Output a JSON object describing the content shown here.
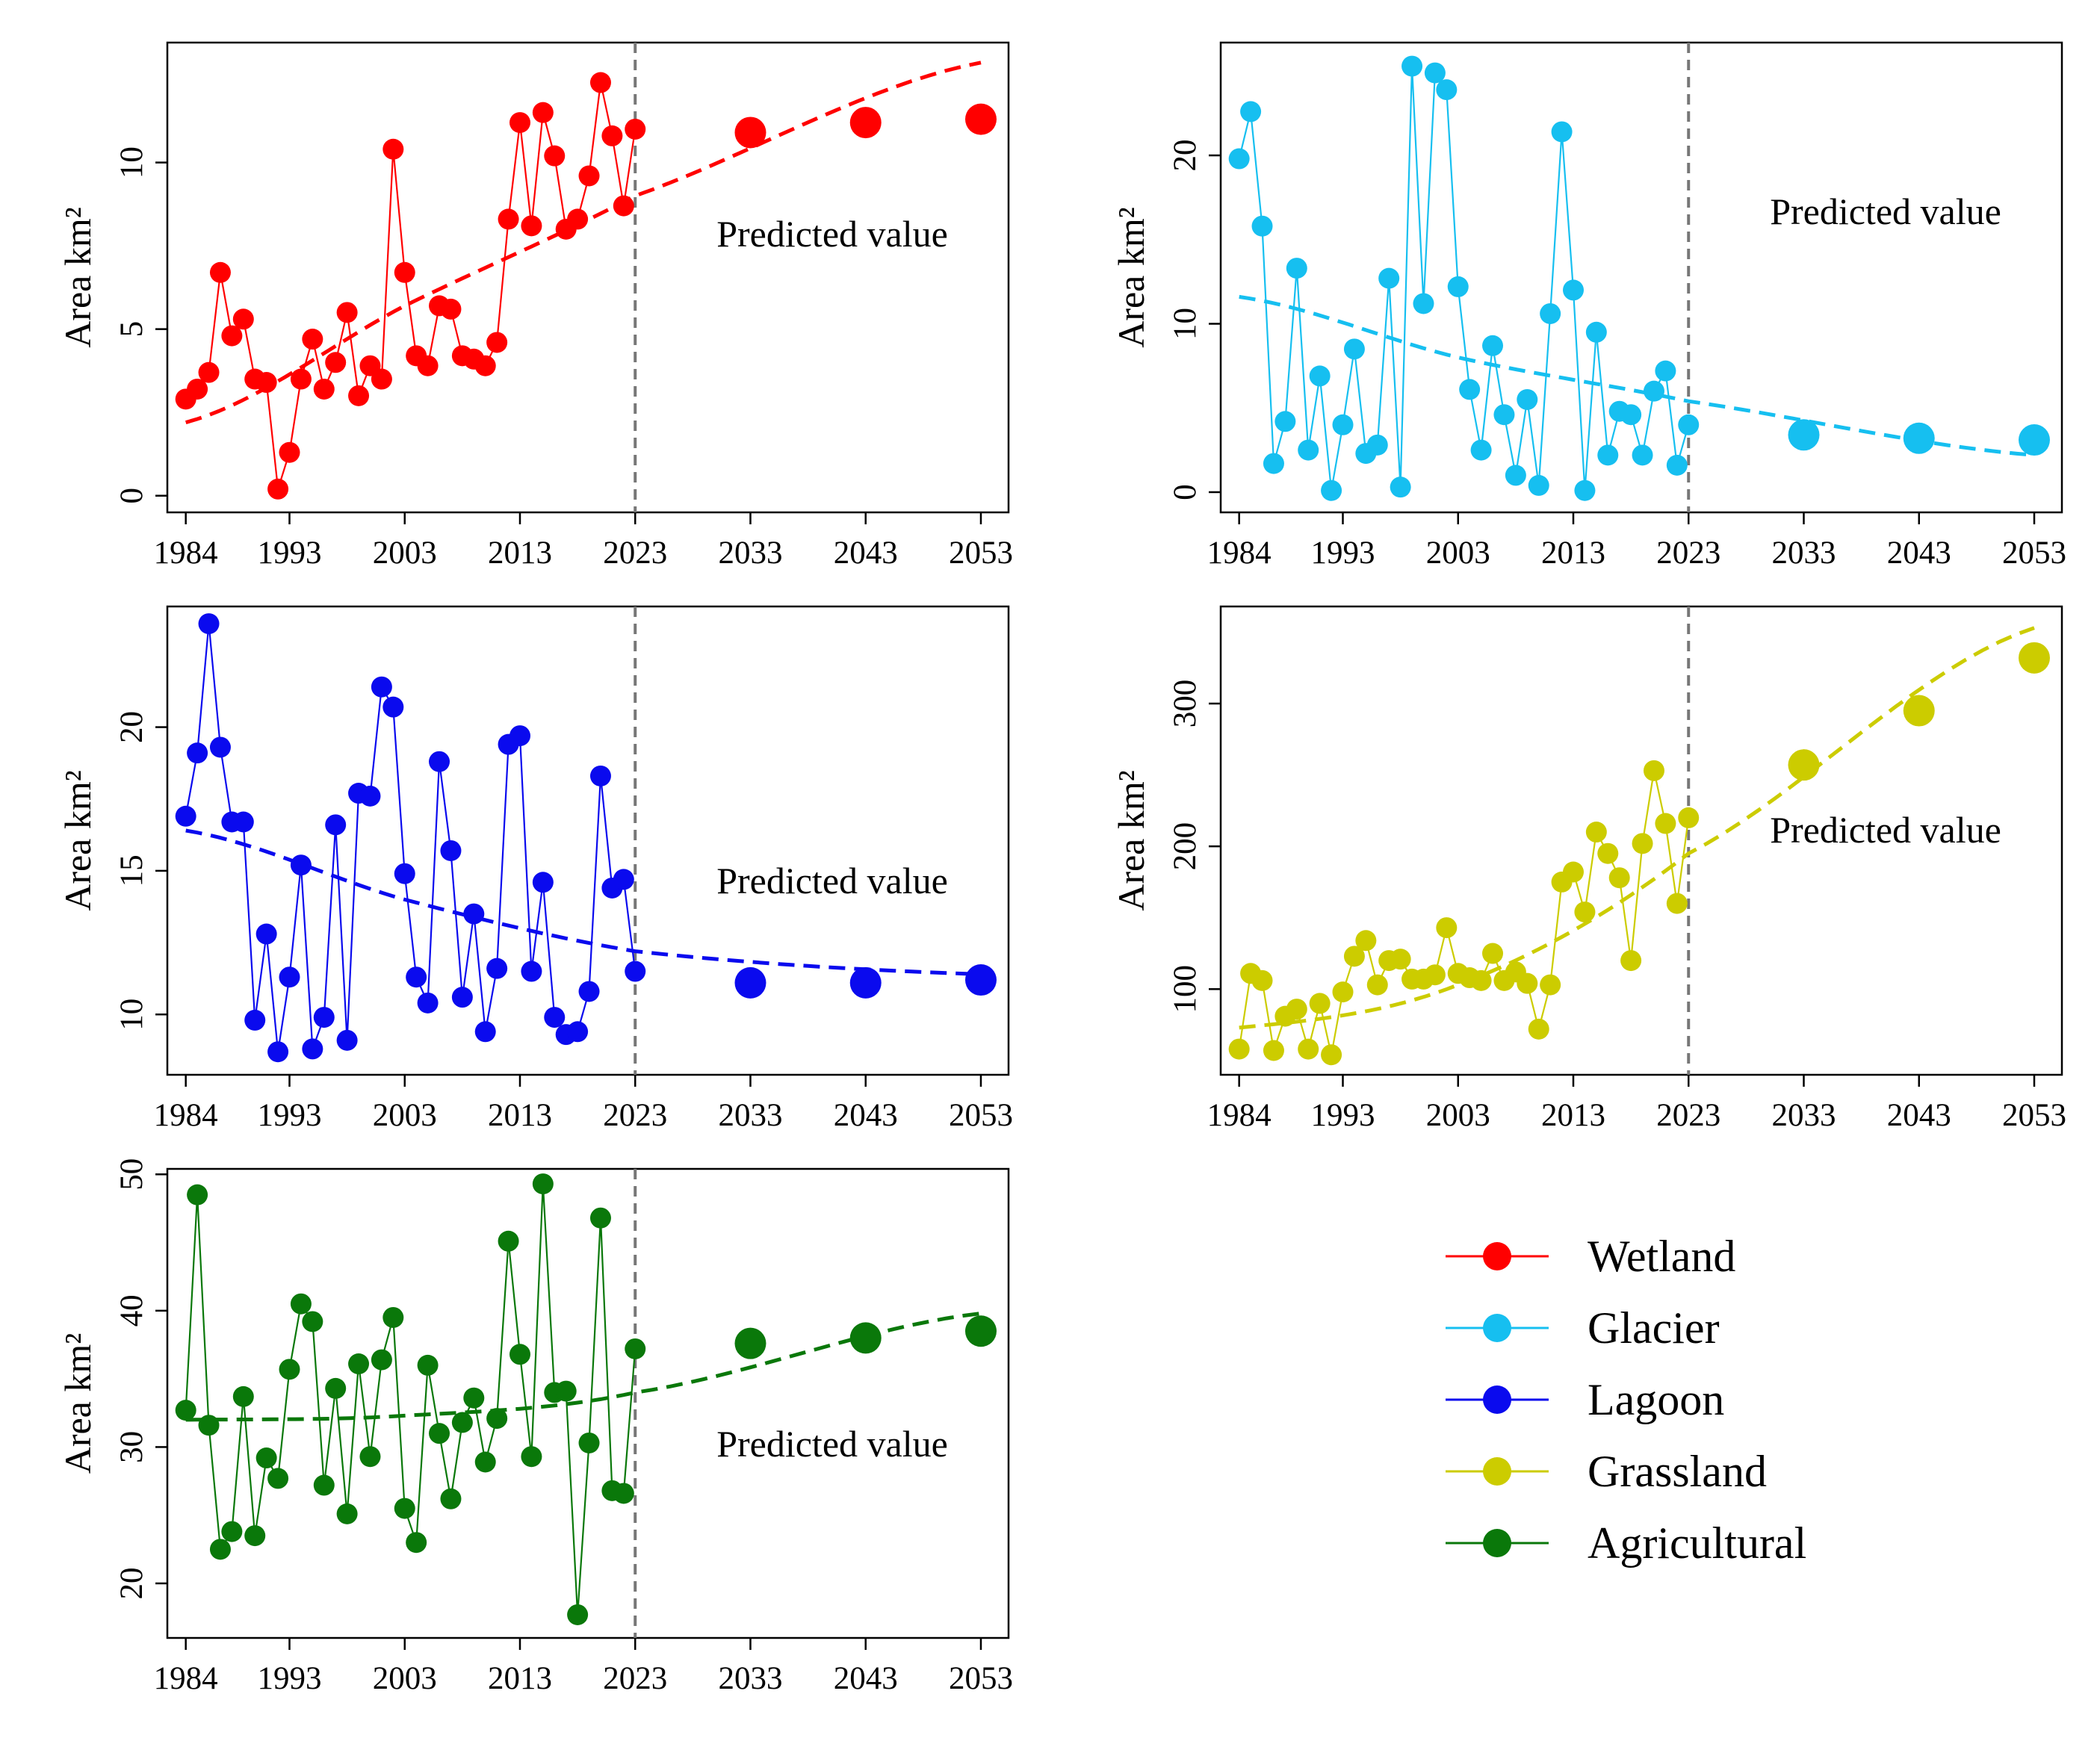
{
  "chart_data": [
    {
      "type": "line",
      "title": "Wetland",
      "color": "#ff0000",
      "ylabel": "Area km²",
      "annotation": "Predicted value",
      "divider_year": 2023,
      "ylim": [
        -0.5,
        13.6
      ],
      "yticks": [
        0,
        5,
        10
      ],
      "xlim": [
        1982.4,
        2055.4
      ],
      "xticks": [
        1984,
        1993,
        2003,
        2013,
        2023,
        2033,
        2043,
        2053
      ],
      "observed": {
        "x": [
          1984,
          1985,
          1986,
          1987,
          1988,
          1989,
          1990,
          1991,
          1992,
          1993,
          1994,
          1995,
          1996,
          1997,
          1998,
          1999,
          2000,
          2001,
          2002,
          2003,
          2004,
          2005,
          2006,
          2007,
          2008,
          2009,
          2010,
          2011,
          2012,
          2013,
          2014,
          2015,
          2016,
          2017,
          2018,
          2019,
          2020,
          2021,
          2022,
          2023
        ],
        "y": [
          2.9,
          3.2,
          3.7,
          6.7,
          4.8,
          5.3,
          3.5,
          3.4,
          0.2,
          1.3,
          3.5,
          4.7,
          3.2,
          4.0,
          5.5,
          3.0,
          3.9,
          3.5,
          10.4,
          6.7,
          4.2,
          3.9,
          5.7,
          5.6,
          4.2,
          4.1,
          3.9,
          4.6,
          8.3,
          11.2,
          8.1,
          11.5,
          10.2,
          8.0,
          8.3,
          9.6,
          12.4,
          10.8,
          8.7,
          11.0
        ]
      },
      "predicted": {
        "x": [
          2033,
          2043,
          2053
        ],
        "y": [
          10.9,
          11.2,
          11.3
        ]
      },
      "trend": {
        "x": [
          1984,
          2003,
          2023,
          2053
        ],
        "y": [
          2.2,
          5.7,
          9.0,
          13.0
        ]
      }
    },
    {
      "type": "line",
      "title": "Glacier",
      "color": "#16bff0",
      "ylabel": "Area km²",
      "annotation": "Predicted value",
      "divider_year": 2023,
      "ylim": [
        -1.2,
        26.7
      ],
      "yticks": [
        0,
        10,
        20
      ],
      "xlim": [
        1982.4,
        2055.4
      ],
      "xticks": [
        1984,
        1993,
        2003,
        2013,
        2023,
        2033,
        2043,
        2053
      ],
      "observed": {
        "x": [
          1984,
          1985,
          1986,
          1987,
          1988,
          1989,
          1990,
          1991,
          1992,
          1993,
          1994,
          1995,
          1996,
          1997,
          1998,
          1999,
          2000,
          2001,
          2002,
          2003,
          2004,
          2005,
          2006,
          2007,
          2008,
          2009,
          2010,
          2011,
          2012,
          2013,
          2014,
          2015,
          2016,
          2017,
          2018,
          2019,
          2020,
          2021,
          2022,
          2023
        ],
        "y": [
          19.8,
          22.6,
          15.8,
          1.7,
          4.2,
          13.3,
          2.5,
          6.9,
          0.1,
          4.0,
          8.5,
          2.3,
          2.8,
          12.7,
          0.3,
          25.3,
          11.2,
          24.9,
          23.9,
          12.2,
          6.1,
          2.5,
          8.7,
          4.6,
          1.0,
          5.5,
          0.4,
          10.6,
          21.4,
          12.0,
          0.1,
          9.5,
          2.2,
          4.8,
          4.6,
          2.2,
          6.0,
          7.2,
          1.6,
          4.0
        ]
      },
      "predicted": {
        "x": [
          2033,
          2043,
          2053
        ],
        "y": [
          3.4,
          3.2,
          3.1
        ]
      },
      "trend": {
        "x": [
          1984,
          2003,
          2023,
          2053
        ],
        "y": [
          11.6,
          8.0,
          5.4,
          2.2
        ]
      }
    },
    {
      "type": "line",
      "title": "Lagoon",
      "color": "#0a0aee",
      "ylabel": "Area km²",
      "annotation": "Predicted value",
      "divider_year": 2023,
      "ylim": [
        7.9,
        24.2
      ],
      "yticks": [
        10,
        15,
        20
      ],
      "xlim": [
        1982.4,
        2055.4
      ],
      "xticks": [
        1984,
        1993,
        2003,
        2013,
        2023,
        2033,
        2043,
        2053
      ],
      "observed": {
        "x": [
          1984,
          1985,
          1986,
          1987,
          1988,
          1989,
          1990,
          1991,
          1992,
          1993,
          1994,
          1995,
          1996,
          1997,
          1998,
          1999,
          2000,
          2001,
          2002,
          2003,
          2004,
          2005,
          2006,
          2007,
          2008,
          2009,
          2010,
          2011,
          2012,
          2013,
          2014,
          2015,
          2016,
          2017,
          2018,
          2019,
          2020,
          2021,
          2022,
          2023
        ],
        "y": [
          16.9,
          19.1,
          23.6,
          19.3,
          16.7,
          16.7,
          9.8,
          12.8,
          8.7,
          11.3,
          15.2,
          8.8,
          9.9,
          16.6,
          9.1,
          17.7,
          17.6,
          21.4,
          20.7,
          14.9,
          11.3,
          10.4,
          18.8,
          15.7,
          10.6,
          13.5,
          9.4,
          11.6,
          19.4,
          19.7,
          11.5,
          14.6,
          9.9,
          9.3,
          9.4,
          10.8,
          18.3,
          14.4,
          14.7,
          11.5
        ]
      },
      "predicted": {
        "x": [
          2033,
          2043,
          2053
        ],
        "y": [
          11.1,
          11.1,
          11.2
        ]
      },
      "trend": {
        "x": [
          1984,
          2003,
          2023,
          2053
        ],
        "y": [
          16.4,
          14.0,
          12.2,
          11.4
        ]
      }
    },
    {
      "type": "line",
      "title": "Grassland",
      "color": "#cccc00",
      "ylabel": "Area km²",
      "annotation": "Predicted value",
      "divider_year": 2023,
      "ylim": [
        40,
        368
      ],
      "yticks": [
        100,
        200,
        300
      ],
      "xlim": [
        1982.4,
        2055.4
      ],
      "xticks": [
        1984,
        1993,
        2003,
        2013,
        2023,
        2033,
        2043,
        2053
      ],
      "observed": {
        "x": [
          1984,
          1985,
          1986,
          1987,
          1988,
          1989,
          1990,
          1991,
          1992,
          1993,
          1994,
          1995,
          1996,
          1997,
          1998,
          1999,
          2000,
          2001,
          2002,
          2003,
          2004,
          2005,
          2006,
          2007,
          2008,
          2009,
          2010,
          2011,
          2012,
          2013,
          2014,
          2015,
          2016,
          2017,
          2018,
          2019,
          2020,
          2021,
          2022,
          2023
        ],
        "y": [
          58,
          111,
          106,
          57,
          81,
          86,
          58,
          90,
          54,
          98,
          123,
          134,
          103,
          120,
          121,
          107,
          107,
          110,
          143,
          111,
          108,
          106,
          125,
          106,
          112,
          104,
          72,
          103,
          175,
          182,
          154,
          210,
          195,
          178,
          120,
          202,
          253,
          216,
          160,
          220
        ]
      },
      "predicted": {
        "x": [
          2033,
          2043,
          2053
        ],
        "y": [
          257,
          295,
          332
        ]
      },
      "trend": {
        "x": [
          1984,
          2003,
          2023,
          2053
        ],
        "y": [
          73,
          103,
          195,
          353
        ]
      }
    },
    {
      "type": "line",
      "title": "Agricultural",
      "color": "#0a780a",
      "ylabel": "Area km²",
      "annotation": "Predicted value",
      "divider_year": 2023,
      "ylim": [
        16.0,
        50.4
      ],
      "yticks": [
        20,
        30,
        40,
        50
      ],
      "xlim": [
        1982.4,
        2055.4
      ],
      "xticks": [
        1984,
        1993,
        2003,
        2013,
        2023,
        2033,
        2043,
        2053
      ],
      "observed": {
        "x": [
          1984,
          1985,
          1986,
          1987,
          1988,
          1989,
          1990,
          1991,
          1992,
          1993,
          1994,
          1995,
          1996,
          1997,
          1998,
          1999,
          2000,
          2001,
          2002,
          2003,
          2004,
          2005,
          2006,
          2007,
          2008,
          2009,
          2010,
          2011,
          2012,
          2013,
          2014,
          2015,
          2016,
          2017,
          2018,
          2019,
          2020,
          2021,
          2022,
          2023
        ],
        "y": [
          32.7,
          48.5,
          31.6,
          22.5,
          23.8,
          33.7,
          23.5,
          29.2,
          27.7,
          35.7,
          40.5,
          39.2,
          27.2,
          34.3,
          25.1,
          36.1,
          29.3,
          36.4,
          39.5,
          25.5,
          23.0,
          36.0,
          31.0,
          26.2,
          31.8,
          33.6,
          28.9,
          32.1,
          45.1,
          36.8,
          29.3,
          49.3,
          34.0,
          34.1,
          17.7,
          30.3,
          46.8,
          26.8,
          26.6,
          37.2
        ]
      },
      "predicted": {
        "x": [
          2033,
          2043,
          2053
        ],
        "y": [
          37.6,
          38.0,
          38.5
        ]
      },
      "trend": {
        "x": [
          1984,
          2003,
          2023,
          2053
        ],
        "y": [
          32.0,
          32.3,
          34.0,
          39.8
        ]
      }
    }
  ],
  "legend": {
    "items": [
      {
        "label": "Wetland",
        "color": "#ff0000"
      },
      {
        "label": "Glacier",
        "color": "#16bff0"
      },
      {
        "label": "Lagoon",
        "color": "#0a0aee"
      },
      {
        "label": "Grassland",
        "color": "#cccc00"
      },
      {
        "label": "Agricultural",
        "color": "#0a780a"
      }
    ]
  }
}
